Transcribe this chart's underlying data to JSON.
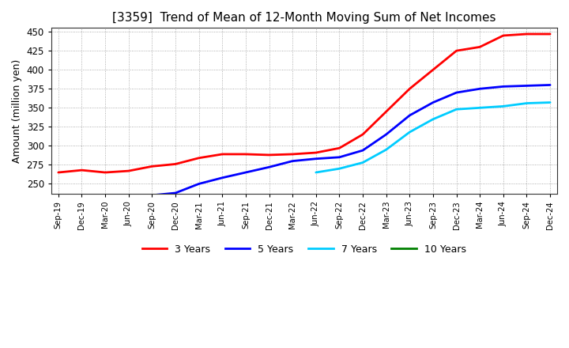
{
  "title": "[3359]  Trend of Mean of 12-Month Moving Sum of Net Incomes",
  "ylabel": "Amount (million yen)",
  "background_color": "#ffffff",
  "grid_color": "#999999",
  "plot_bg_color": "#ffffff",
  "ylim": [
    237,
    455
  ],
  "yticks": [
    250,
    275,
    300,
    325,
    350,
    375,
    400,
    425,
    450
  ],
  "x_labels": [
    "Sep-19",
    "Dec-19",
    "Mar-20",
    "Jun-20",
    "Sep-20",
    "Dec-20",
    "Mar-21",
    "Jun-21",
    "Sep-21",
    "Dec-21",
    "Mar-22",
    "Jun-22",
    "Sep-22",
    "Dec-22",
    "Mar-23",
    "Jun-23",
    "Sep-23",
    "Dec-23",
    "Mar-24",
    "Jun-24",
    "Sep-24",
    "Dec-24"
  ],
  "series": {
    "3 Years": {
      "color": "#ff0000",
      "data_x": [
        0,
        1,
        2,
        3,
        4,
        5,
        6,
        7,
        8,
        9,
        10,
        11,
        12,
        13,
        14,
        15,
        16,
        17,
        18,
        19,
        20,
        21
      ],
      "data_y": [
        265,
        268,
        265,
        267,
        273,
        276,
        284,
        289,
        289,
        288,
        289,
        291,
        297,
        315,
        345,
        375,
        400,
        425,
        430,
        445,
        447,
        447
      ]
    },
    "5 Years": {
      "color": "#0000ff",
      "data_x": [
        4,
        5,
        6,
        7,
        8,
        9,
        10,
        11,
        12,
        13,
        14,
        15,
        16,
        17,
        18,
        19,
        20,
        21
      ],
      "data_y": [
        235,
        238,
        250,
        258,
        265,
        272,
        280,
        283,
        285,
        294,
        315,
        340,
        357,
        370,
        375,
        378,
        379,
        380
      ]
    },
    "7 Years": {
      "color": "#00ccff",
      "data_x": [
        11,
        12,
        13,
        14,
        15,
        16,
        17,
        18,
        19,
        20,
        21
      ],
      "data_y": [
        265,
        270,
        278,
        295,
        318,
        335,
        348,
        350,
        352,
        356,
        357
      ]
    },
    "10 Years": {
      "color": "#008000",
      "data_x": [],
      "data_y": []
    }
  },
  "legend_labels": [
    "3 Years",
    "5 Years",
    "7 Years",
    "10 Years"
  ],
  "legend_colors": [
    "#ff0000",
    "#0000ff",
    "#00ccff",
    "#008000"
  ]
}
